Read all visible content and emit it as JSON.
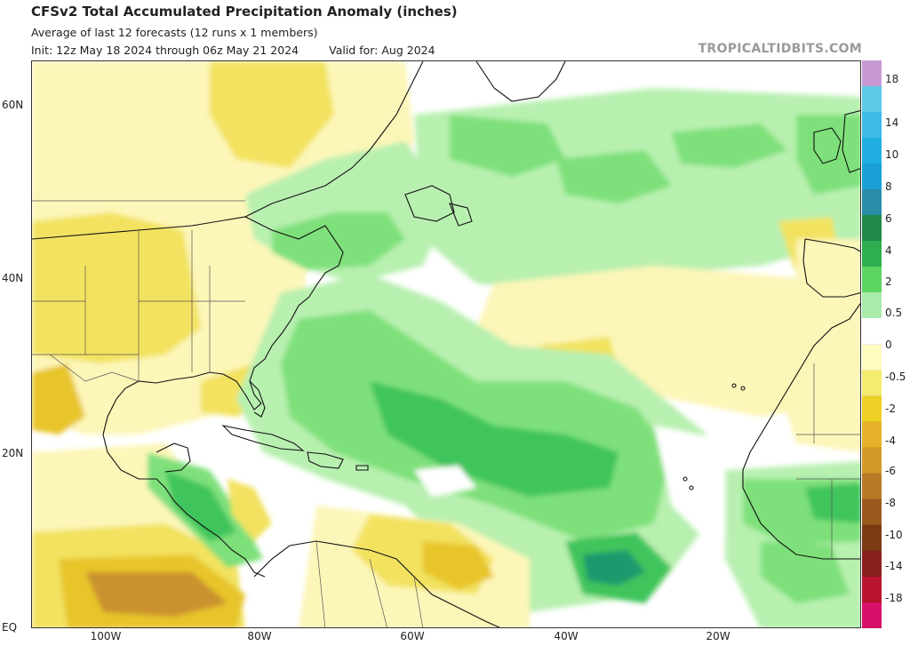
{
  "title": "CFSv2 Total Accumulated Precipitation Anomaly (inches)",
  "subtitle": "Average of last 12 forecasts (12 runs x 1 members)",
  "init_text": "Init: 12z May 18 2024 through 06z May 21 2024",
  "valid_text": "Valid for: Aug 2024",
  "brand": "TROPICALTIDBITS.COM",
  "lat_labels": [
    "60N",
    "40N",
    "20N",
    "EQ"
  ],
  "lon_labels": [
    "100W",
    "80W",
    "60W",
    "40W",
    "20W"
  ],
  "colorbar": {
    "labels": [
      "18",
      "14",
      "10",
      "8",
      "6",
      "4",
      "2",
      "0.5",
      "0",
      "-0.5",
      "-2",
      "-4",
      "-6",
      "-8",
      "-10",
      "-14",
      "-18"
    ],
    "colors": [
      "#c79ad6",
      "#5fc9e8",
      "#3cbbe6",
      "#22aee0",
      "#1aa0d6",
      "#2a8ea8",
      "#1f8a4a",
      "#2eae4f",
      "#5cd462",
      "#a8ebaa",
      "#ffffff",
      "#fffcc0",
      "#f5ec6e",
      "#eed024",
      "#e6b22a",
      "#d49a28",
      "#b87a26",
      "#9a5a1e",
      "#7a3a12",
      "#8a1f1f",
      "#b8142e",
      "#d8106a"
    ]
  },
  "map_colors": {
    "wet_light": "#b8f0b0",
    "wet_mid": "#7ee07a",
    "wet_strong": "#3fc45c",
    "wet_core": "#1e9a6e",
    "dry_light": "#fcf6b8",
    "dry_mid": "#f2e25e",
    "dry_strong": "#e8c52a",
    "dry_core": "#c9922e",
    "coast": "#111111",
    "border": "#555555"
  }
}
